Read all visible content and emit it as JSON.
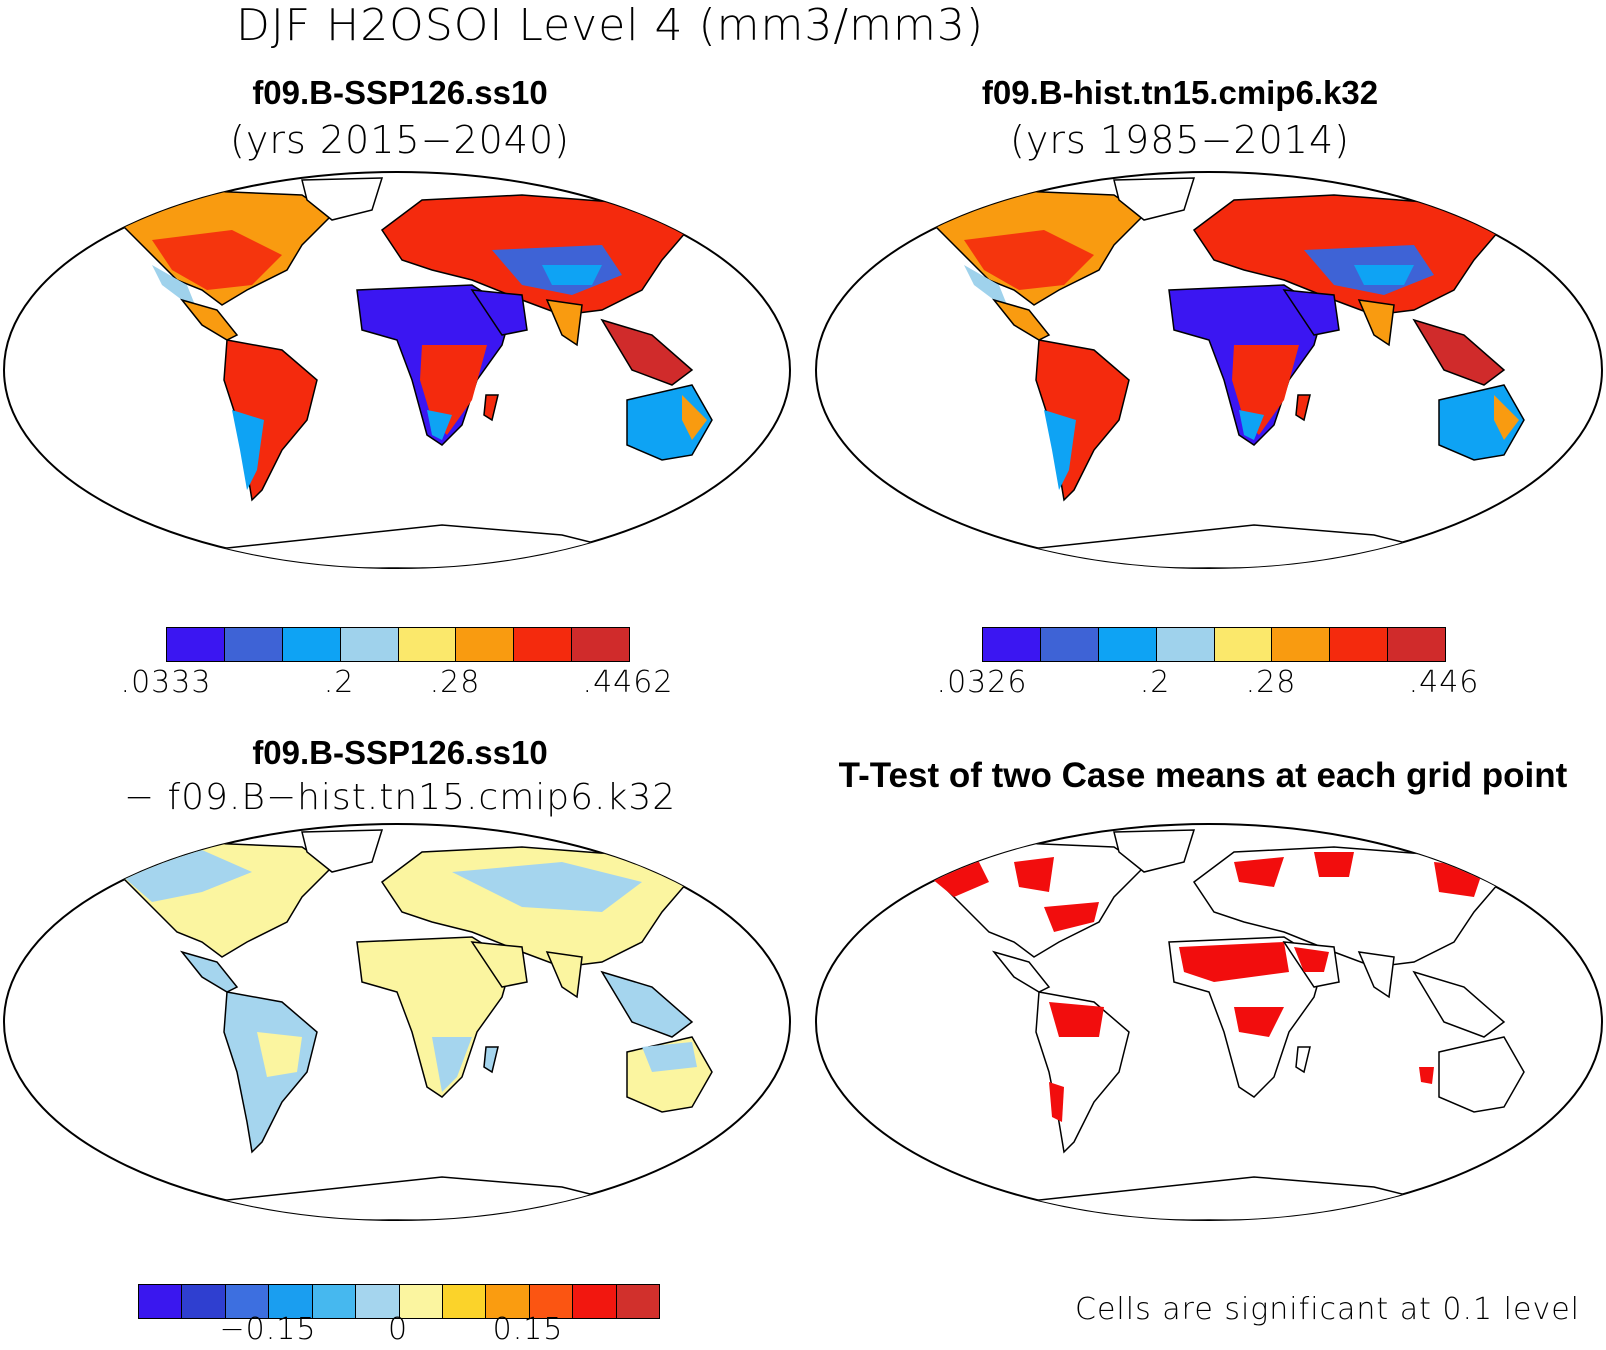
{
  "figure": {
    "title": "DJF H2OSOI Level 4 (mm3/mm3)"
  },
  "panels": {
    "top_left": {
      "case": "f09.B-SSP126.ss10",
      "years": "(yrs 2015−2040)",
      "colorbar": {
        "colors": [
          "#3b16f2",
          "#3e63d6",
          "#0ea3f4",
          "#9fd2ec",
          "#fbe86b",
          "#f99b10",
          "#f42a0d",
          "#d02b2b"
        ],
        "labels": [
          ".0333",
          ".2",
          ".28",
          ".4462"
        ]
      }
    },
    "top_right": {
      "case": "f09.B-hist.tn15.cmip6.k32",
      "years": "(yrs 1985−2014)",
      "colorbar": {
        "colors": [
          "#3b16f2",
          "#3e63d6",
          "#0ea3f4",
          "#9fd2ec",
          "#fbe86b",
          "#f99b10",
          "#f42a0d",
          "#d02b2b"
        ],
        "labels": [
          ".0326",
          ".2",
          ".28",
          ".446"
        ]
      }
    },
    "bottom_left": {
      "case": "f09.B-SSP126.ss10",
      "minus_case": "− f09.B−hist.tn15.cmip6.k32",
      "colorbar": {
        "colors": [
          "#3a17ef",
          "#2f3fd0",
          "#3d6fe0",
          "#1a9ef0",
          "#46b8ef",
          "#a5d5ee",
          "#fbf5a0",
          "#fbd32a",
          "#fa9c10",
          "#fb5512",
          "#f2170f",
          "#d1302c"
        ],
        "labels": [
          "−0.15",
          "0",
          "0.15"
        ]
      }
    },
    "bottom_right": {
      "title": "T-Test of two Case means at each grid point",
      "note": "Cells are significant at 0.1 level"
    }
  },
  "colors": {
    "significance_red": "#f20d0d",
    "coastline": "#000000"
  }
}
